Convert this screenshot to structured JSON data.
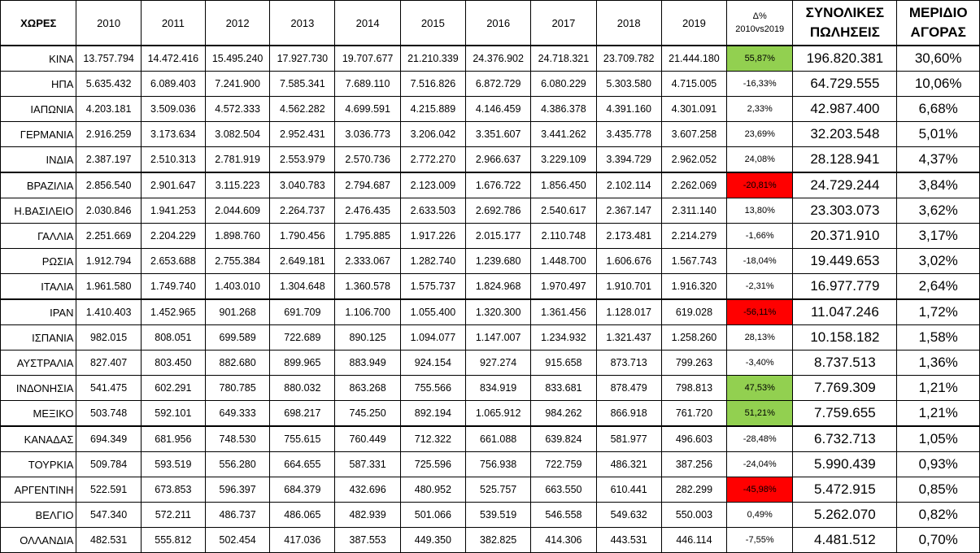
{
  "headers": {
    "country": "ΧΩΡΕΣ",
    "years": [
      "2010",
      "2011",
      "2012",
      "2013",
      "2014",
      "2015",
      "2016",
      "2017",
      "2018",
      "2019"
    ],
    "delta_line1": "Δ%",
    "delta_line2": "2010vs2019",
    "total_line1": "ΣΥΝΟΛΙΚΕΣ",
    "total_line2": "ΠΩΛΗΣΕΙΣ",
    "share_line1": "ΜΕΡΙΔΙΟ",
    "share_line2": "ΑΓΟΡΑΣ"
  },
  "colors": {
    "positive_highlight": "#92d050",
    "negative_highlight": "#ff0000"
  },
  "rows": [
    {
      "country": "ΚΙΝΑ",
      "values": [
        "13.757.794",
        "14.472.416",
        "15.495.240",
        "17.927.730",
        "19.707.677",
        "21.210.339",
        "24.376.902",
        "24.718.321",
        "23.709.782",
        "21.444.180"
      ],
      "delta": "55,87%",
      "highlight": "green",
      "total": "196.820.381",
      "share": "30,60%"
    },
    {
      "country": "ΗΠΑ",
      "values": [
        "5.635.432",
        "6.089.403",
        "7.241.900",
        "7.585.341",
        "7.689.110",
        "7.516.826",
        "6.872.729",
        "6.080.229",
        "5.303.580",
        "4.715.005"
      ],
      "delta": "-16,33%",
      "highlight": "",
      "total": "64.729.555",
      "share": "10,06%"
    },
    {
      "country": "ΙΑΠΩΝΙΑ",
      "values": [
        "4.203.181",
        "3.509.036",
        "4.572.333",
        "4.562.282",
        "4.699.591",
        "4.215.889",
        "4.146.459",
        "4.386.378",
        "4.391.160",
        "4.301.091"
      ],
      "delta": "2,33%",
      "highlight": "",
      "total": "42.987.400",
      "share": "6,68%"
    },
    {
      "country": "ΓΕΡΜΑΝΙΑ",
      "values": [
        "2.916.259",
        "3.173.634",
        "3.082.504",
        "2.952.431",
        "3.036.773",
        "3.206.042",
        "3.351.607",
        "3.441.262",
        "3.435.778",
        "3.607.258"
      ],
      "delta": "23,69%",
      "highlight": "",
      "total": "32.203.548",
      "share": "5,01%"
    },
    {
      "country": "ΙΝΔΙΑ",
      "values": [
        "2.387.197",
        "2.510.313",
        "2.781.919",
        "2.553.979",
        "2.570.736",
        "2.772.270",
        "2.966.637",
        "3.229.109",
        "3.394.729",
        "2.962.052"
      ],
      "delta": "24,08%",
      "highlight": "",
      "total": "28.128.941",
      "share": "4,37%"
    },
    {
      "country": "ΒΡΑΖΙΛΙΑ",
      "values": [
        "2.856.540",
        "2.901.647",
        "3.115.223",
        "3.040.783",
        "2.794.687",
        "2.123.009",
        "1.676.722",
        "1.856.450",
        "2.102.114",
        "2.262.069"
      ],
      "delta": "-20,81%",
      "highlight": "red",
      "total": "24.729.244",
      "share": "3,84%"
    },
    {
      "country": "Η.ΒΑΣΙΛΕΙΟ",
      "values": [
        "2.030.846",
        "1.941.253",
        "2.044.609",
        "2.264.737",
        "2.476.435",
        "2.633.503",
        "2.692.786",
        "2.540.617",
        "2.367.147",
        "2.311.140"
      ],
      "delta": "13,80%",
      "highlight": "",
      "total": "23.303.073",
      "share": "3,62%"
    },
    {
      "country": "ΓΑΛΛΙΑ",
      "values": [
        "2.251.669",
        "2.204.229",
        "1.898.760",
        "1.790.456",
        "1.795.885",
        "1.917.226",
        "2.015.177",
        "2.110.748",
        "2.173.481",
        "2.214.279"
      ],
      "delta": "-1,66%",
      "highlight": "",
      "total": "20.371.910",
      "share": "3,17%"
    },
    {
      "country": "ΡΩΣΙΑ",
      "values": [
        "1.912.794",
        "2.653.688",
        "2.755.384",
        "2.649.181",
        "2.333.067",
        "1.282.740",
        "1.239.680",
        "1.448.700",
        "1.606.676",
        "1.567.743"
      ],
      "delta": "-18,04%",
      "highlight": "",
      "total": "19.449.653",
      "share": "3,02%"
    },
    {
      "country": "ΙΤΑΛΙΑ",
      "values": [
        "1.961.580",
        "1.749.740",
        "1.403.010",
        "1.304.648",
        "1.360.578",
        "1.575.737",
        "1.824.968",
        "1.970.497",
        "1.910.701",
        "1.916.320"
      ],
      "delta": "-2,31%",
      "highlight": "",
      "total": "16.977.779",
      "share": "2,64%"
    },
    {
      "country": "ΙΡΑΝ",
      "values": [
        "1.410.403",
        "1.452.965",
        "901.268",
        "691.709",
        "1.106.700",
        "1.055.400",
        "1.320.300",
        "1.361.456",
        "1.128.017",
        "619.028"
      ],
      "delta": "-56,11%",
      "highlight": "red",
      "total": "11.047.246",
      "share": "1,72%"
    },
    {
      "country": "ΙΣΠΑΝΙΑ",
      "values": [
        "982.015",
        "808.051",
        "699.589",
        "722.689",
        "890.125",
        "1.094.077",
        "1.147.007",
        "1.234.932",
        "1.321.437",
        "1.258.260"
      ],
      "delta": "28,13%",
      "highlight": "",
      "total": "10.158.182",
      "share": "1,58%"
    },
    {
      "country": "ΑΥΣΤΡΑΛΙΑ",
      "values": [
        "827.407",
        "803.450",
        "882.680",
        "899.965",
        "883.949",
        "924.154",
        "927.274",
        "915.658",
        "873.713",
        "799.263"
      ],
      "delta": "-3,40%",
      "highlight": "",
      "total": "8.737.513",
      "share": "1,36%"
    },
    {
      "country": "ΙΝΔΟΝΗΣΙΑ",
      "values": [
        "541.475",
        "602.291",
        "780.785",
        "880.032",
        "863.268",
        "755.566",
        "834.919",
        "833.681",
        "878.479",
        "798.813"
      ],
      "delta": "47,53%",
      "highlight": "green",
      "total": "7.769.309",
      "share": "1,21%"
    },
    {
      "country": "ΜΕΞΙΚΟ",
      "values": [
        "503.748",
        "592.101",
        "649.333",
        "698.217",
        "745.250",
        "892.194",
        "1.065.912",
        "984.262",
        "866.918",
        "761.720"
      ],
      "delta": "51,21%",
      "highlight": "green",
      "total": "7.759.655",
      "share": "1,21%"
    },
    {
      "country": "ΚΑΝΑΔΑΣ",
      "values": [
        "694.349",
        "681.956",
        "748.530",
        "755.615",
        "760.449",
        "712.322",
        "661.088",
        "639.824",
        "581.977",
        "496.603"
      ],
      "delta": "-28,48%",
      "highlight": "",
      "total": "6.732.713",
      "share": "1,05%"
    },
    {
      "country": "ΤΟΥΡΚΙΑ",
      "values": [
        "509.784",
        "593.519",
        "556.280",
        "664.655",
        "587.331",
        "725.596",
        "756.938",
        "722.759",
        "486.321",
        "387.256"
      ],
      "delta": "-24,04%",
      "highlight": "",
      "total": "5.990.439",
      "share": "0,93%"
    },
    {
      "country": "ΑΡΓΕΝΤΙΝΗ",
      "values": [
        "522.591",
        "673.853",
        "596.397",
        "684.379",
        "432.696",
        "480.952",
        "525.757",
        "663.550",
        "610.441",
        "282.299"
      ],
      "delta": "-45,98%",
      "highlight": "red",
      "total": "5.472.915",
      "share": "0,85%"
    },
    {
      "country": "ΒΕΛΓΙΟ",
      "values": [
        "547.340",
        "572.211",
        "486.737",
        "486.065",
        "482.939",
        "501.066",
        "539.519",
        "546.558",
        "549.632",
        "550.003"
      ],
      "delta": "0,49%",
      "highlight": "",
      "total": "5.262.070",
      "share": "0,82%"
    },
    {
      "country": "ΟΛΛΑΝΔΙΑ",
      "values": [
        "482.531",
        "555.812",
        "502.454",
        "417.036",
        "387.553",
        "449.350",
        "382.825",
        "414.306",
        "443.531",
        "446.114"
      ],
      "delta": "-7,55%",
      "highlight": "",
      "total": "4.481.512",
      "share": "0,70%"
    }
  ]
}
